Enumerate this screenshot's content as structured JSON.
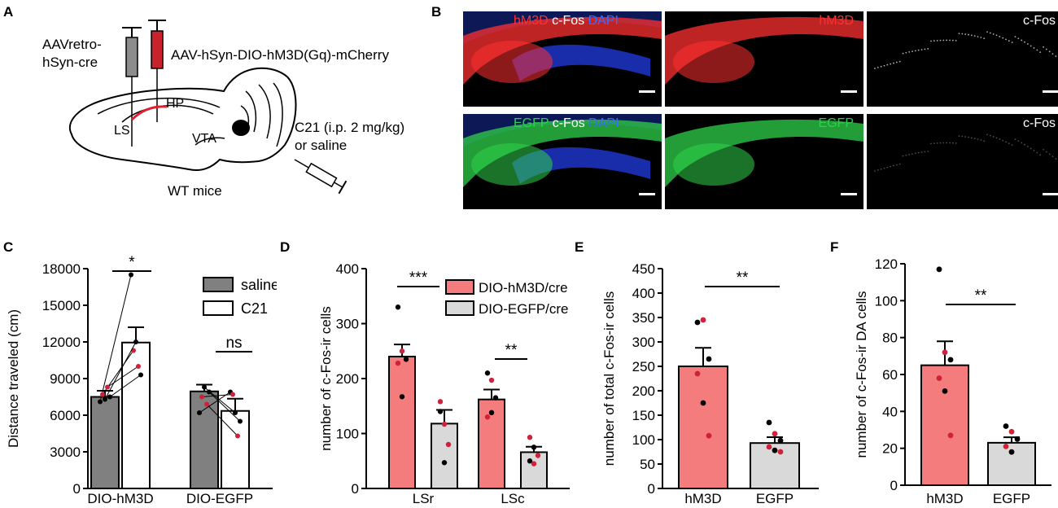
{
  "panels": {
    "A": {
      "letter": "A",
      "virus_retro_line1": "AAVretro-",
      "virus_retro_line2": "hSyn-cre",
      "virus_dio": "AAV-hSyn-DIO-hM3D(Gq)-mCherry",
      "region_hp": "HP",
      "region_ls": "LS",
      "region_vta": "VTA",
      "mice": "WT mice",
      "injection_line1": "C21 (i.p. 2 mg/kg)",
      "injection_line2": "or saline"
    },
    "B": {
      "letter": "B",
      "images": [
        {
          "row": "top",
          "labels": [
            {
              "text": "hM3D",
              "color": "#ff3030"
            },
            {
              "text": "c-Fos",
              "color": "#ffffff"
            },
            {
              "text": "DAPI",
              "color": "#3b6bff"
            }
          ]
        },
        {
          "row": "top",
          "labels": [
            {
              "text": "hM3D",
              "color": "#ff3030"
            }
          ]
        },
        {
          "row": "top",
          "labels": [
            {
              "text": "c-Fos",
              "color": "#ffffff"
            }
          ]
        },
        {
          "row": "bottom",
          "labels": [
            {
              "text": "EGFP",
              "color": "#2fd14a"
            },
            {
              "text": "c-Fos",
              "color": "#ffffff"
            },
            {
              "text": "DAPI",
              "color": "#3b6bff"
            }
          ]
        },
        {
          "row": "bottom",
          "labels": [
            {
              "text": "EGFP",
              "color": "#2fd14a"
            }
          ]
        },
        {
          "row": "bottom",
          "labels": [
            {
              "text": "c-Fos",
              "color": "#ffffff"
            }
          ]
        }
      ]
    },
    "C": {
      "letter": "C"
    },
    "D": {
      "letter": "D"
    },
    "E": {
      "letter": "E"
    },
    "F": {
      "letter": "F"
    }
  },
  "colors": {
    "grey": "#808080",
    "pink": "#f47c7c",
    "lightgrey": "#d9d9d9",
    "red_point": "#d0213a"
  },
  "chart_data": [
    {
      "panel": "C",
      "type": "bar",
      "categories": [
        "DIO-hM3D",
        "DIO-EGFP"
      ],
      "ylabel": "Distance traveled (cm)",
      "ylim": [
        0,
        18000
      ],
      "yticks": [
        "0",
        "3000",
        "6000",
        "9000",
        "12000",
        "15000",
        "18000"
      ],
      "legend": {
        "placement": "top-right",
        "entries": [
          "saline",
          "C21"
        ]
      },
      "series": [
        {
          "name": "saline",
          "values": [
            7500,
            7950
          ],
          "sem": [
            500,
            550
          ]
        },
        {
          "name": "C21",
          "values": [
            11950,
            6350
          ],
          "sem": [
            1250,
            1000
          ]
        }
      ],
      "paired": [
        [
          [
            7100,
            17500
          ],
          [
            7700,
            11300
          ],
          [
            7300,
            12000
          ],
          [
            8300,
            10000
          ],
          [
            7500,
            9300
          ]
        ],
        [
          [
            6200,
            7900
          ],
          [
            7500,
            7700
          ],
          [
            8300,
            6200
          ],
          [
            6900,
            4300
          ],
          [
            7900,
            5500
          ]
        ]
      ],
      "significance": [
        "*",
        "ns"
      ]
    },
    {
      "panel": "D",
      "type": "bar",
      "categories": [
        "LSr",
        "LSc"
      ],
      "ylabel": "number of c-Fos-ir cells",
      "ylim": [
        0,
        400
      ],
      "yticks": [
        "0",
        "100",
        "200",
        "300",
        "400"
      ],
      "legend": {
        "placement": "top-right",
        "entries": [
          "DIO-hM3D/cre",
          "DIO-EGFP/cre"
        ]
      },
      "series": [
        {
          "name": "DIO-hM3D/cre",
          "values": [
            240,
            162
          ],
          "sem": [
            22,
            18
          ]
        },
        {
          "name": "DIO-EGFP/cre",
          "values": [
            118,
            66
          ],
          "sem": [
            25,
            10
          ]
        }
      ],
      "points": [
        [
          [
            330,
            250,
            235,
            228,
            167
          ],
          [
            158,
            47,
            80,
            140,
            117
          ]
        ],
        [
          [
            210,
            197,
            165,
            130,
            138
          ],
          [
            93,
            75,
            60,
            50,
            45
          ]
        ]
      ],
      "significance": [
        "***",
        "**"
      ]
    },
    {
      "panel": "E",
      "type": "bar",
      "categories": [
        "hM3D",
        "EGFP"
      ],
      "ylabel": "number of total c-Fos-ir cells",
      "ylim": [
        0,
        450
      ],
      "yticks": [
        "0",
        "50",
        "100",
        "150",
        "200",
        "250",
        "300",
        "350",
        "400",
        "450"
      ],
      "values": [
        250,
        93
      ],
      "sem": [
        38,
        12
      ],
      "points": [
        [
          340,
          345,
          265,
          235,
          175,
          108
        ],
        [
          135,
          112,
          98,
          85,
          78,
          75
        ]
      ],
      "significance": [
        "**"
      ]
    },
    {
      "panel": "F",
      "type": "bar",
      "categories": [
        "hM3D",
        "EGFP"
      ],
      "ylabel": "number of c-Fos-ir DA cells",
      "ylim": [
        0,
        120
      ],
      "yticks": [
        "0",
        "20",
        "40",
        "60",
        "80",
        "100",
        "120"
      ],
      "values": [
        65,
        23
      ],
      "sem": [
        13,
        3
      ],
      "points": [
        [
          117,
          72,
          68,
          58,
          51,
          27
        ],
        [
          32,
          29,
          25,
          21,
          18
        ]
      ],
      "significance": [
        "**"
      ]
    }
  ]
}
